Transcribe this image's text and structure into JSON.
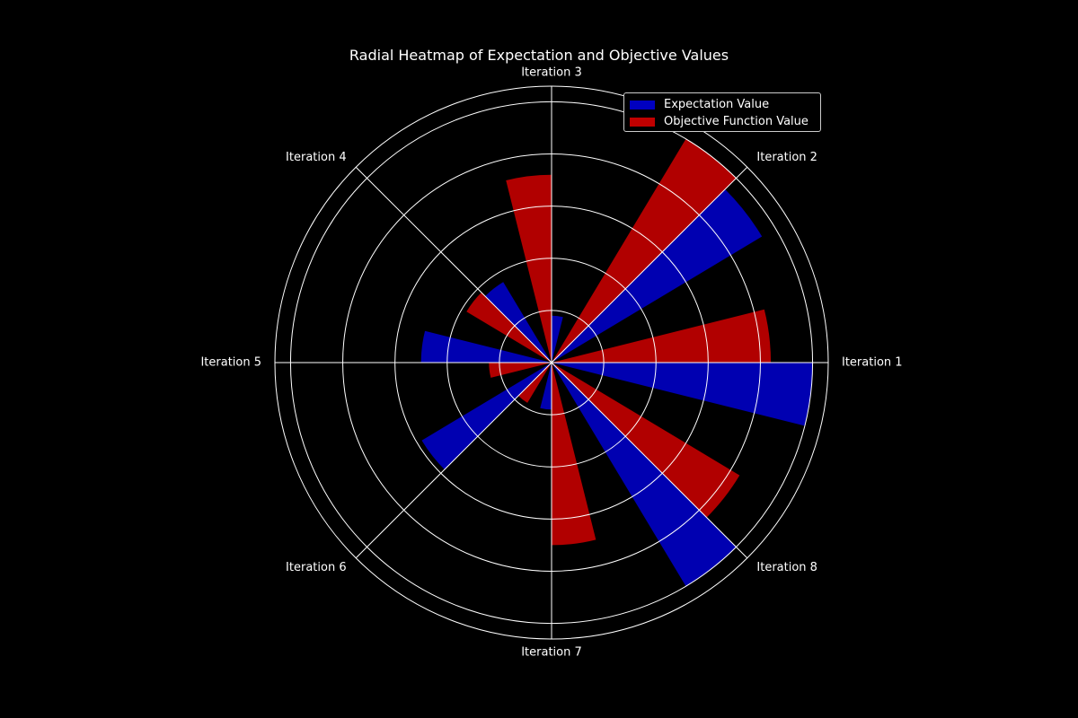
{
  "chart_data": {
    "type": "bar",
    "subtype": "polar",
    "title": "Radial Heatmap of Expectation and Objective Values",
    "categories": [
      "Iteration 1",
      "Iteration 2",
      "Iteration 3",
      "Iteration 4",
      "Iteration 5",
      "Iteration 6",
      "Iteration 7",
      "Iteration 8"
    ],
    "series": [
      {
        "name": "Expectation Value",
        "color": "#0000c0",
        "values": [
          0.5,
          0.47,
          0.09,
          0.18,
          0.25,
          0.29,
          0.09,
          0.5
        ]
      },
      {
        "name": "Objective Function Value",
        "color": "#c00000",
        "values": [
          0.42,
          0.5,
          0.36,
          0.19,
          0.12,
          0.09,
          0.35,
          0.42
        ]
      }
    ],
    "rlim": [
      0,
      0.53
    ],
    "radial_gridlines": [
      0.1,
      0.2,
      0.3,
      0.4,
      0.5
    ],
    "grid": true,
    "legend_position": "top-right"
  }
}
